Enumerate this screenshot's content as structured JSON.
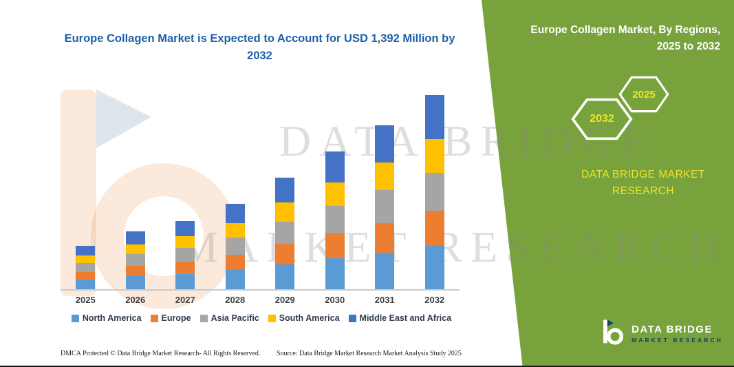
{
  "chart_data": {
    "type": "bar",
    "stacked": true,
    "title": "Europe Collagen Market is Expected to Account for USD 1,392 Million by 2032",
    "unit": "USD Million",
    "categories": [
      "2025",
      "2026",
      "2027",
      "2028",
      "2029",
      "2030",
      "2031",
      "2032"
    ],
    "series": [
      {
        "name": "North America",
        "color": "#5B9BD5",
        "values": [
          70,
          93,
          110,
          137,
          180,
          222,
          264,
          310
        ]
      },
      {
        "name": "Europe",
        "color": "#ED7D31",
        "values": [
          56,
          75,
          88,
          110,
          144,
          177,
          212,
          255
        ]
      },
      {
        "name": "Asia Pacific",
        "color": "#A5A5A5",
        "values": [
          62,
          83,
          98,
          122,
          160,
          197,
          235,
          270
        ]
      },
      {
        "name": "South America",
        "color": "#FFC000",
        "values": [
          53,
          70,
          83,
          104,
          136,
          167,
          200,
          240
        ]
      },
      {
        "name": "Middle East and Africa",
        "color": "#4472C4",
        "values": [
          69,
          94,
          111,
          137,
          180,
          222,
          264,
          317
        ]
      }
    ],
    "totals": [
      310,
      415,
      490,
      610,
      800,
      985,
      1175,
      1392
    ],
    "ylim": [
      0,
      1392
    ],
    "grid": false,
    "legend_position": "bottom"
  },
  "right_panel": {
    "title": "Europe Collagen Market, By Regions, 2025 to 2032",
    "hexagon_back": "2032",
    "hexagon_front": "2025",
    "brand_text": "DATA BRIDGE MARKET RESEARCH"
  },
  "watermark": {
    "line1": "DATA BRIDGE",
    "line2": "MARKET RESEARCH"
  },
  "footer": {
    "dmca": "DMCA Protected © Data Bridge Market Research-  All Rights Reserved.",
    "source": "Source: Data Bridge Market Research  Market Analysis Study 2025"
  },
  "logo": {
    "brand": "DATA BRIDGE",
    "sub": "MARKET RESEARCH"
  },
  "colors": {
    "panel_green": "#78A33C",
    "title_blue": "#1F5FA7",
    "hex_year_yellow": "#ECE52B",
    "axis_label": "#3F3F3F"
  }
}
